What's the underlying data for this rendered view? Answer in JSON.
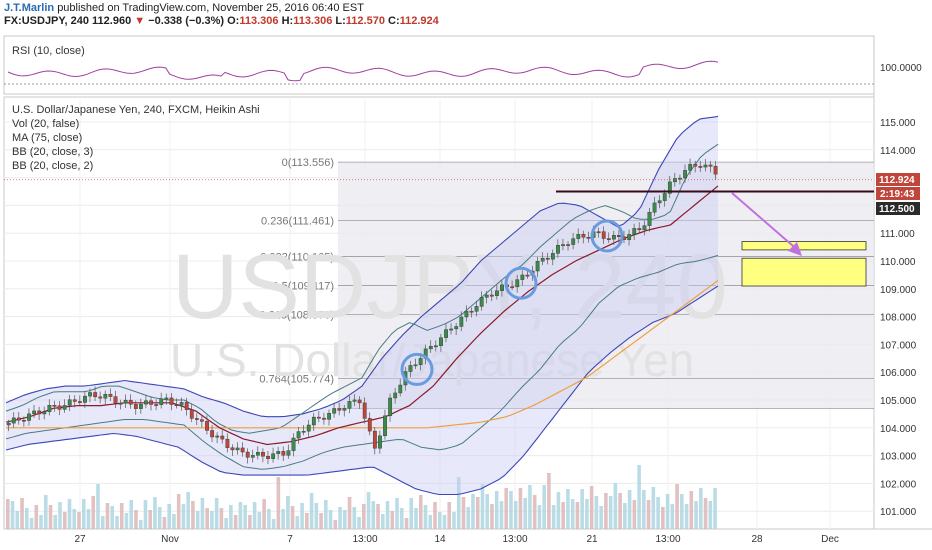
{
  "header": {
    "author": "J.T.Marlin",
    "published": "published on TradingView.com, November 25, 2016 06:40 EST",
    "symbol": "FX:USDJPY, 240",
    "last": "112.960",
    "change": "−0.338 (−0.3%)",
    "o_label": "O:",
    "o_value": "113.306",
    "h_label": "H:",
    "h_value": "113.306",
    "l_label": "L:",
    "l_value": "112.570",
    "c_label": "C:",
    "c_value": "112.924"
  },
  "rsi_panel": {
    "label": "RSI (10, close)",
    "axis_value": "100.0000"
  },
  "main_panel": {
    "legend": [
      "U.S. Dollar/Japanese Yen, 240, FXCM, Heikin Ashi",
      "Vol (20, false)",
      "MA (75, close)",
      "BB (20, close, 3)",
      "BB (20, close, 2)"
    ],
    "watermark_symbol": "USDJPY, 240",
    "watermark_name": "U.S. Dollar/Japanese Yen"
  },
  "price_tags": {
    "current": "112.924",
    "countdown": "2:19:43",
    "level": "112.500"
  },
  "colors": {
    "up": "#3a8a4a",
    "down": "#c0453a",
    "band": "#5b66c9",
    "ma": "#f0a040",
    "mid": "#8b1a2a",
    "rsi": "#a040a0",
    "arrow": "#c070e0",
    "box": "#ffff80"
  },
  "chart_data": {
    "type": "candlestick",
    "symbol": "FX:USDJPY",
    "timeframe": "240",
    "y_ticks": [
      115.0,
      114.0,
      113.0,
      112.0,
      111.0,
      110.0,
      109.0,
      108.0,
      107.0,
      106.0,
      105.0,
      104.0,
      103.0,
      102.0,
      101.0
    ],
    "x_ticks": [
      "27",
      "Nov",
      "7",
      "13:00",
      "14",
      "13:00",
      "21",
      "13:00",
      "28",
      "Dec"
    ],
    "fib_levels": [
      {
        "label": "0(113.556)",
        "value": 113.556
      },
      {
        "label": "0.236(111.461)",
        "value": 111.461
      },
      {
        "label": "0.382(110.165)",
        "value": 110.165
      },
      {
        "label": "0.5(109.117)",
        "value": 109.117
      },
      {
        "label": "0.618(108.070)",
        "value": 108.07
      },
      {
        "label": "0.764(105.774)",
        "value": 105.774
      }
    ],
    "price_path": [
      104.1,
      104.3,
      104.5,
      104.7,
      104.8,
      105.0,
      105.2,
      105.1,
      104.9,
      104.8,
      104.9,
      105.0,
      104.8,
      104.3,
      103.8,
      103.4,
      103.1,
      103.0,
      103.0,
      103.1,
      103.9,
      104.3,
      104.5,
      104.8,
      105.0,
      103.2,
      104.9,
      105.9,
      106.5,
      107.0,
      107.5,
      108.0,
      108.5,
      108.9,
      109.1,
      109.4,
      109.9,
      110.3,
      110.7,
      110.9,
      111.0,
      110.8,
      110.9,
      111.2,
      112.1,
      112.8,
      113.3,
      113.5,
      113.2
    ],
    "bb2_upper": [
      104.6,
      104.8,
      105.1,
      105.3,
      105.3,
      105.3,
      105.5,
      105.5,
      105.3,
      105.1,
      105.0,
      105.0,
      104.7,
      104.2,
      103.9,
      103.8,
      103.9,
      104.0,
      104.4,
      104.8,
      105.2,
      105.5,
      105.8,
      106.8,
      107.5,
      107.8,
      107.5,
      107.7,
      108.0,
      108.5,
      109.0,
      109.5,
      109.9,
      110.5,
      111.0,
      111.5,
      111.8,
      112.0,
      111.8,
      111.5,
      111.5,
      111.7,
      113.0,
      113.8,
      114.2
    ],
    "bb2_lower": [
      103.6,
      103.8,
      103.9,
      104.0,
      104.1,
      104.2,
      104.3,
      104.3,
      104.2,
      104.1,
      103.5,
      103.0,
      102.6,
      102.5,
      102.6,
      102.8,
      103.1,
      103.3,
      103.4,
      103.5,
      103.6,
      103.3,
      103.2,
      103.4,
      104.0,
      104.6,
      105.4,
      106.1,
      107.0,
      107.6,
      108.5,
      109.1,
      109.4,
      109.6,
      109.9,
      110.0,
      110.2
    ],
    "bb3_upper": [
      104.9,
      105.2,
      105.4,
      105.5,
      105.5,
      105.6,
      105.7,
      105.6,
      105.5,
      105.4,
      105.1,
      104.9,
      104.6,
      104.4,
      104.4,
      104.5,
      104.7,
      105.0,
      105.5,
      106.5,
      107.3,
      108.0,
      108.6,
      109.2,
      110.0,
      110.6,
      111.2,
      111.8,
      112.1,
      112.0,
      111.6,
      111.2,
      111.8,
      113.3,
      114.5,
      115.1,
      115.2
    ],
    "bb3_lower": [
      103.2,
      103.4,
      103.5,
      103.6,
      103.7,
      103.8,
      103.7,
      103.5,
      103.3,
      102.8,
      102.4,
      102.3,
      102.3,
      102.3,
      102.3,
      102.4,
      102.5,
      102.6,
      102.2,
      101.8,
      101.6,
      101.6,
      101.8,
      102.2,
      103.0,
      104.0,
      105.0,
      106.0,
      106.7,
      107.3,
      107.8,
      108.1,
      108.6,
      109.1
    ],
    "ma75": [
      104.0,
      104.0,
      104.0,
      104.0,
      104.0,
      104.0,
      104.0,
      104.0,
      104.0,
      104.0,
      104.0,
      104.0,
      104.0,
      104.0,
      104.0,
      104.0,
      104.0,
      104.1,
      104.2,
      104.4,
      104.8,
      105.3,
      105.8,
      106.5,
      107.2,
      107.9,
      108.6,
      109.3
    ],
    "bb_mid": [
      104.2,
      104.4,
      104.7,
      104.8,
      104.8,
      104.9,
      104.9,
      104.9,
      104.6,
      104.0,
      103.6,
      103.4,
      103.5,
      103.7,
      104.0,
      104.2,
      104.4,
      104.8,
      105.5,
      106.5,
      107.4,
      108.2,
      108.9,
      109.5,
      110.0,
      110.4,
      110.8,
      111.1,
      111.3,
      112.0,
      112.7
    ],
    "annotations": {
      "horizontal_level": 112.5,
      "target_box_1": [
        110.4,
        110.7
      ],
      "target_box_2": [
        109.1,
        110.1
      ],
      "circled_points": 3,
      "arrow": "down from 112.6 to 110.2"
    }
  }
}
